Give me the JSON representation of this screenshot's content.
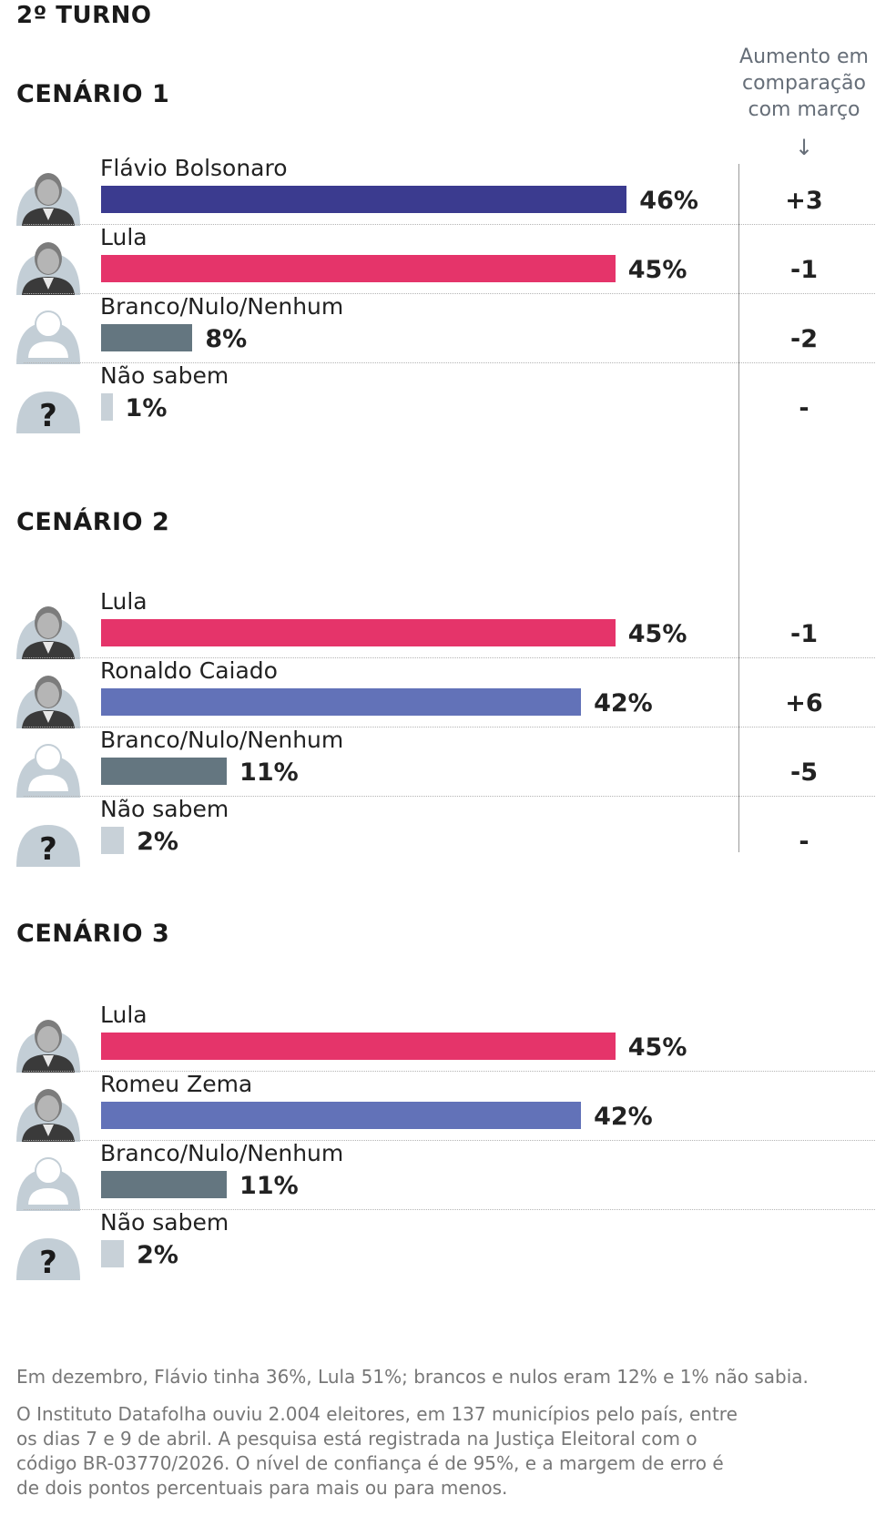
{
  "title": "2º TURNO",
  "delta_header": [
    "Aumento em",
    "comparação",
    "com março"
  ],
  "delta_arrow": "↓",
  "colors": {
    "bolsonaro": "#3b3b8f",
    "lula": "#e5346a",
    "challenger": "#6272b8",
    "branco": "#647680",
    "nao_sabem": "#c8d1d8",
    "avatar_bg": "#c3ced6"
  },
  "chart_data": [
    {
      "type": "bar",
      "title": "CENÁRIO 1",
      "categories": [
        "Flávio Bolsonaro",
        "Lula",
        "Branco/Nulo/Nenhum",
        "Não sabem"
      ],
      "values": [
        46,
        45,
        8,
        1
      ],
      "value_labels": [
        "46%",
        "45%",
        "8%",
        "1%"
      ],
      "change_vs_march": [
        "+3",
        "-1",
        "-2",
        "-"
      ],
      "kinds": [
        "bolsonaro",
        "lula",
        "branco",
        "nao_sabem"
      ],
      "avatar_icons": [
        "candidate-photo-icon",
        "candidate-photo-icon",
        "person-silhouette-icon",
        "question-mark-icon"
      ]
    },
    {
      "type": "bar",
      "title": "CENÁRIO 2",
      "categories": [
        "Lula",
        "Ronaldo Caiado",
        "Branco/Nulo/Nenhum",
        "Não sabem"
      ],
      "values": [
        45,
        42,
        11,
        2
      ],
      "value_labels": [
        "45%",
        "42%",
        "11%",
        "2%"
      ],
      "change_vs_march": [
        "-1",
        "+6",
        "-5",
        "-"
      ],
      "kinds": [
        "lula",
        "challenger",
        "branco",
        "nao_sabem"
      ],
      "avatar_icons": [
        "candidate-photo-icon",
        "candidate-photo-icon",
        "person-silhouette-icon",
        "question-mark-icon"
      ]
    },
    {
      "type": "bar",
      "title": "CENÁRIO 3",
      "categories": [
        "Lula",
        "Romeu Zema",
        "Branco/Nulo/Nenhum",
        "Não sabem"
      ],
      "values": [
        45,
        42,
        11,
        2
      ],
      "value_labels": [
        "45%",
        "42%",
        "11%",
        "2%"
      ],
      "kinds": [
        "lula",
        "challenger",
        "branco",
        "nao_sabem"
      ],
      "avatar_icons": [
        "candidate-photo-icon",
        "candidate-photo-icon",
        "person-silhouette-icon",
        "question-mark-icon"
      ]
    }
  ],
  "notes": {
    "december": "Em dezembro, Flávio tinha 36%, Lula 51%; brancos e nulos eram 12% e 1% não sabia.",
    "methodology": "O Instituto Datafolha ouviu 2.004 eleitores, em 137 municípios pelo país, entre os dias 7 e 9 de abril. A pesquisa está registrada na Justiça Eleitoral com o código BR-03770/2026. O nível de confiança é de 95%, e a margem de erro é de dois pontos percentuais para mais ou para menos."
  }
}
